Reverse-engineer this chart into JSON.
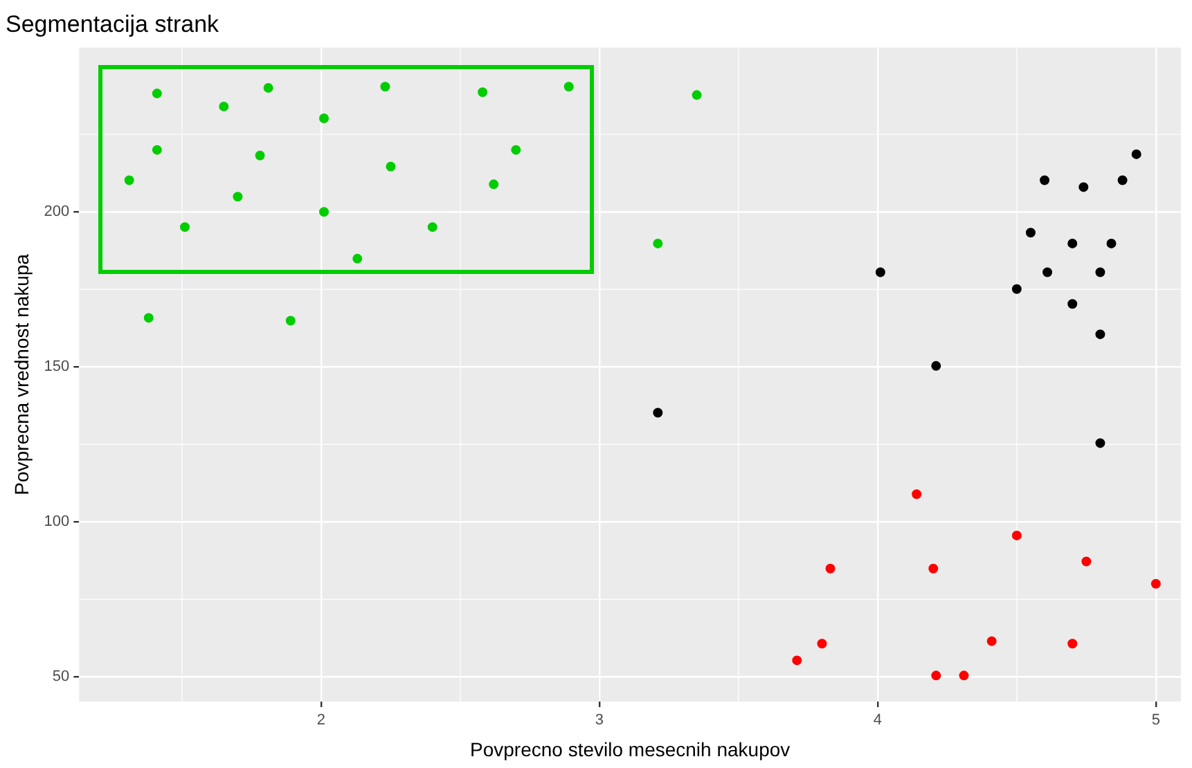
{
  "chart_data": {
    "type": "scatter",
    "title": "Segmentacija strank",
    "xlabel": "Povprecno stevilo mesecnih nakupov",
    "ylabel": "Povprecna vrednost nakupa",
    "xlim": [
      1.13,
      5.09
    ],
    "ylim": [
      42,
      253
    ],
    "xticks": [
      2,
      3,
      4,
      5
    ],
    "yticks": [
      50,
      100,
      150,
      200
    ],
    "grid": true,
    "legend": false,
    "marker": "circle",
    "series": [
      {
        "color": "#00cd00",
        "x": [
          1.41,
          1.65,
          1.81,
          2.23,
          2.58,
          2.89,
          3.35,
          2.01,
          1.41,
          1.78,
          2.7,
          2.25,
          1.31,
          2.62,
          1.7,
          2.01,
          1.51,
          2.4,
          2.13,
          3.21,
          1.38,
          1.89
        ],
        "values": [
          238.2,
          234,
          240,
          240.4,
          238.6,
          240.4,
          237.7,
          230.2,
          220,
          218.2,
          220,
          214.6,
          210.2,
          208.9,
          204.9,
          200,
          195.1,
          195.1,
          184.9,
          189.8,
          165.8,
          164.9
        ]
      },
      {
        "color": "#000000",
        "x": [
          4.93,
          4.6,
          4.74,
          4.88,
          4.55,
          4.7,
          4.84,
          4.61,
          4.8,
          4.01,
          4.5,
          4.7,
          4.8,
          4.21,
          3.21,
          4.8
        ],
        "values": [
          218.6,
          210.2,
          208,
          210.2,
          193.3,
          189.8,
          189.8,
          180.5,
          180.5,
          180.5,
          175.1,
          170.3,
          160.5,
          150.3,
          135.2,
          125.4
        ]
      },
      {
        "color": "#ff0000",
        "x": [
          4.14,
          4.5,
          4.75,
          3.83,
          4.2,
          5.0,
          4.41,
          3.71,
          3.8,
          4.7,
          4.21,
          4.31
        ],
        "values": [
          108.9,
          95.6,
          87.2,
          84.9,
          84.9,
          80.0,
          61.5,
          55.3,
          60.7,
          60.7,
          50.4,
          50.4
        ]
      }
    ]
  }
}
